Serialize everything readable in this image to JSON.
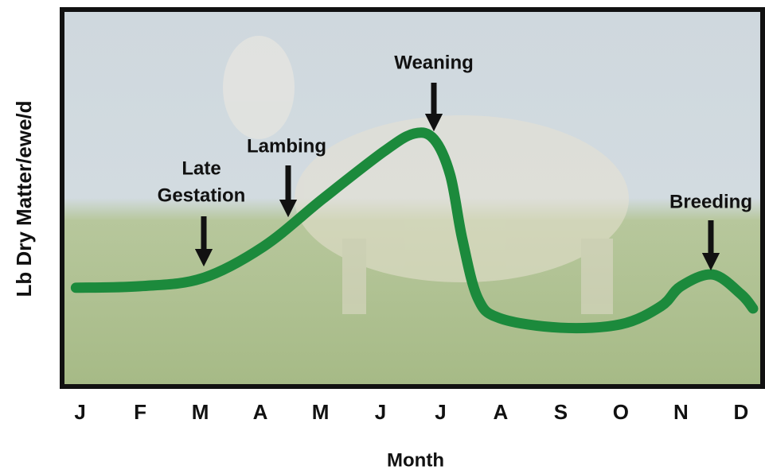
{
  "chart_data": {
    "type": "line",
    "xlabel": "Month",
    "ylabel": "Lb Dry Matter/ewe/d",
    "xlim": [
      -0.3,
      11.36
    ],
    "ylim": [
      0,
      100
    ],
    "xticks": [
      {
        "value": 0,
        "label": "J"
      },
      {
        "value": 1,
        "label": "F"
      },
      {
        "value": 2,
        "label": "M"
      },
      {
        "value": 3,
        "label": "A"
      },
      {
        "value": 4,
        "label": "M"
      },
      {
        "value": 5,
        "label": "J"
      },
      {
        "value": 6,
        "label": "J"
      },
      {
        "value": 7,
        "label": "A"
      },
      {
        "value": 8,
        "label": "S"
      },
      {
        "value": 9,
        "label": "O"
      },
      {
        "value": 10,
        "label": "N"
      },
      {
        "value": 11,
        "label": "D"
      }
    ],
    "series": [
      {
        "color": "#1c8a3c",
        "x": [
          -0.07,
          1,
          2.03,
          3.05,
          4.04,
          5.06,
          5.56,
          5.89,
          6.16,
          6.36,
          6.62,
          6.99,
          7.99,
          9.0,
          9.67,
          10,
          10.53,
          11,
          11.2
        ],
        "values": [
          26.2,
          26.6,
          28.7,
          37.1,
          49.8,
          62.4,
          67.1,
          65.6,
          56.1,
          39.2,
          23.4,
          18.1,
          15.6,
          16.5,
          21.3,
          26.6,
          29.7,
          24.5,
          20.7
        ]
      }
    ],
    "annotations": [
      {
        "text": [
          "Late",
          "Gestation"
        ]
      },
      {
        "text": [
          "Lambing"
        ]
      },
      {
        "text": [
          "Weaning"
        ]
      },
      {
        "text": [
          "Breeding"
        ]
      }
    ]
  }
}
